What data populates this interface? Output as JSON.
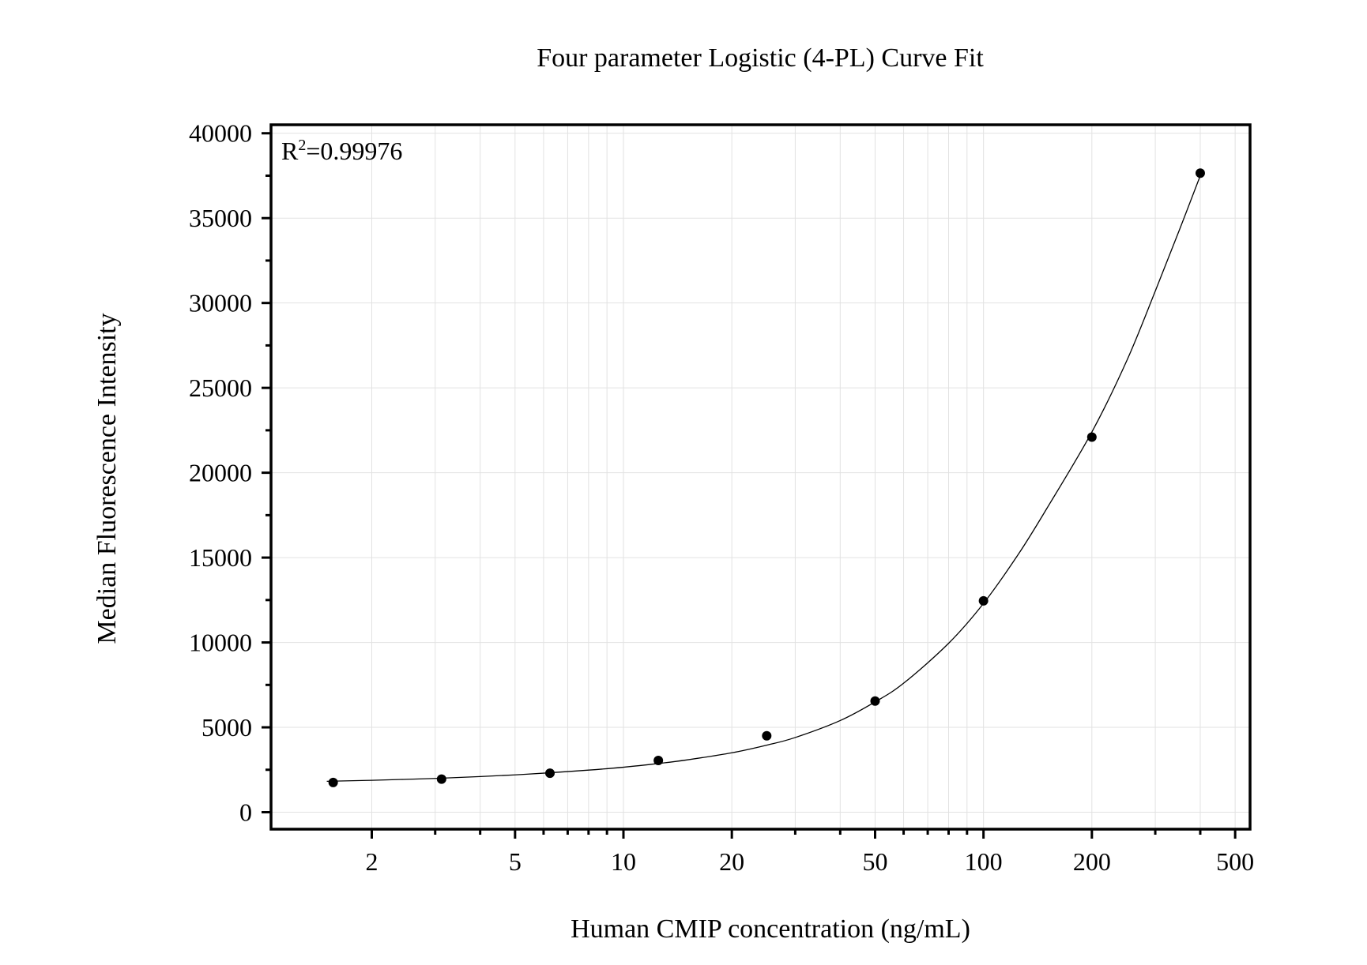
{
  "chart_data": {
    "type": "scatter",
    "title": "Four parameter Logistic (4-PL) Curve Fit",
    "xlabel": "Human CMIP concentration (ng/mL)",
    "ylabel": "Median Fluorescence Intensity",
    "xscale": "log",
    "xlim": [
      1.05,
      550
    ],
    "ylim": [
      -1000,
      40500
    ],
    "x_ticks": [
      2,
      5,
      10,
      20,
      50,
      100,
      200,
      500
    ],
    "x_tick_labels": [
      "2",
      "5",
      "10",
      "20",
      "50",
      "100",
      "200",
      "500"
    ],
    "y_ticks": [
      0,
      5000,
      10000,
      15000,
      20000,
      25000,
      30000,
      35000,
      40000
    ],
    "y_tick_labels": [
      "0",
      "5000",
      "10000",
      "15000",
      "20000",
      "25000",
      "30000",
      "35000",
      "40000"
    ],
    "grid": true,
    "annotation": {
      "r2_prefix": "R",
      "r2_sup": "2",
      "r2_value": "=0.99976"
    },
    "points": {
      "x": [
        1.5625,
        3.125,
        6.25,
        12.5,
        25,
        50,
        100,
        200,
        400
      ],
      "y": [
        1750,
        1950,
        2300,
        3050,
        4500,
        6550,
        12450,
        22100,
        37650
      ]
    },
    "fit": {
      "model": "4PL",
      "x": [
        1.5,
        2,
        3,
        4,
        5,
        6,
        8,
        10,
        12.5,
        15,
        20,
        25,
        30,
        40,
        50,
        60,
        80,
        100,
        125,
        150,
        200,
        250,
        300,
        350,
        400
      ],
      "y": [
        1820,
        1880,
        1990,
        2100,
        2200,
        2300,
        2480,
        2650,
        2870,
        3080,
        3500,
        3950,
        4400,
        5400,
        6500,
        7600,
        9950,
        12300,
        15200,
        17900,
        22400,
        26600,
        30700,
        34300,
        37500
      ]
    }
  }
}
